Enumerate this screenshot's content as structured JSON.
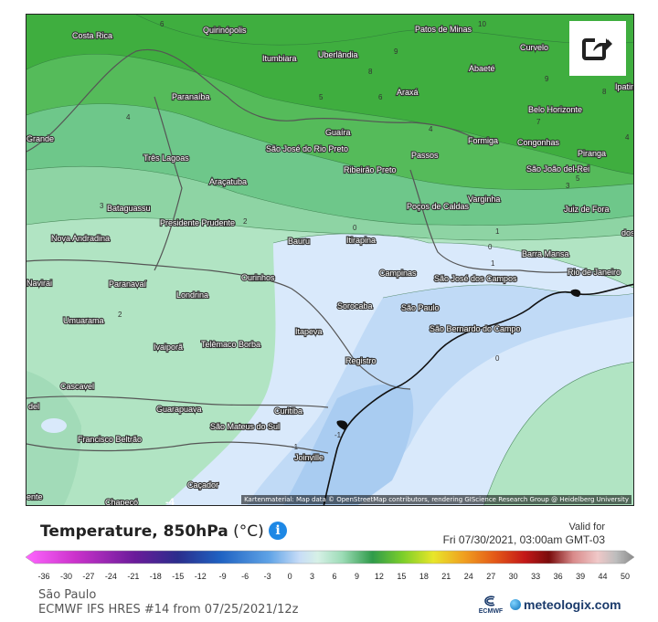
{
  "map": {
    "cities": [
      {
        "name": "Costa Rica"
      },
      {
        "name": "Quirinópolis"
      },
      {
        "name": "Patos de Minas"
      },
      {
        "name": "Itumbiara"
      },
      {
        "name": "Uberlândia"
      },
      {
        "name": "Curvelo"
      },
      {
        "name": "Abaeté"
      },
      {
        "name": "Ipatinga"
      },
      {
        "name": "Paranaíba"
      },
      {
        "name": "Araxá"
      },
      {
        "name": "Belo Horizonte"
      },
      {
        "name": "Grande"
      },
      {
        "name": "Guaíra"
      },
      {
        "name": "Formiga"
      },
      {
        "name": "Congonhas"
      },
      {
        "name": "Três Lagoas"
      },
      {
        "name": "São José do Rio Preto"
      },
      {
        "name": "Ribeirão Preto"
      },
      {
        "name": "Passos"
      },
      {
        "name": "São João del-Rei"
      },
      {
        "name": "Piranga"
      },
      {
        "name": "Araçatuba"
      },
      {
        "name": "Bataguassu"
      },
      {
        "name": "Presidente Prudente"
      },
      {
        "name": "Poços de Caldas"
      },
      {
        "name": "Varginha"
      },
      {
        "name": "Juiz de Fora"
      },
      {
        "name": "Nova Andradina"
      },
      {
        "name": "Bauru"
      },
      {
        "name": "Itirapina"
      },
      {
        "name": "Barra Mansa"
      },
      {
        "name": "dos"
      },
      {
        "name": "Navirai"
      },
      {
        "name": "Paranavaí"
      },
      {
        "name": "Ourinhos"
      },
      {
        "name": "Campinas"
      },
      {
        "name": "São José dos Campos"
      },
      {
        "name": "Rio de Janeiro"
      },
      {
        "name": "Londrina"
      },
      {
        "name": "Sorocaba"
      },
      {
        "name": "São Paulo"
      },
      {
        "name": "Umuarama"
      },
      {
        "name": "Itapeva"
      },
      {
        "name": "São Bernardo do Campo"
      },
      {
        "name": "Ivaiporã"
      },
      {
        "name": "Telêmaco Borba"
      },
      {
        "name": "Registro"
      },
      {
        "name": "Cascavel"
      },
      {
        "name": "Guarapuava"
      },
      {
        "name": "Curitiba"
      },
      {
        "name": "del"
      },
      {
        "name": "São Mateus do Sul"
      },
      {
        "name": "Francisco Beltrão"
      },
      {
        "name": "Joinville"
      },
      {
        "name": "Caçador"
      },
      {
        "name": "Chapecó"
      },
      {
        "name": "ente"
      }
    ],
    "isolines": [
      "6",
      "10",
      "9",
      "9",
      "4",
      "8",
      "5",
      "6",
      "7",
      "8",
      "4",
      "4",
      "5",
      "3",
      "3",
      "2",
      "0",
      "1",
      "0",
      "1",
      "2",
      "0",
      "-1",
      "-1",
      "-4"
    ],
    "attribution": "Kartenmaterial: Map data © OpenStreetMap contributors, rendering GIScience Research Group @ Heidelberg University"
  },
  "legend": {
    "title_main": "Temperature, 850hPa",
    "title_unit": " (°C)",
    "valid_label": "Valid for",
    "valid_date": "Fri 07/30/2021, 03:00am GMT-03",
    "ticks": [
      "-36",
      "-30",
      "-27",
      "-24",
      "-21",
      "-18",
      "-15",
      "-12",
      "-9",
      "-6",
      "-3",
      "0",
      "3",
      "6",
      "9",
      "12",
      "15",
      "18",
      "21",
      "24",
      "27",
      "30",
      "33",
      "36",
      "39",
      "44",
      "50"
    ]
  },
  "footer": {
    "location": "São Paulo",
    "model": "ECMWF IFS HRES #14 from 07/25/2021/12z",
    "ecmwf_logo": "ECMWF",
    "brand": "meteologix.com"
  },
  "colors": {
    "accent": "#1e88e5"
  }
}
